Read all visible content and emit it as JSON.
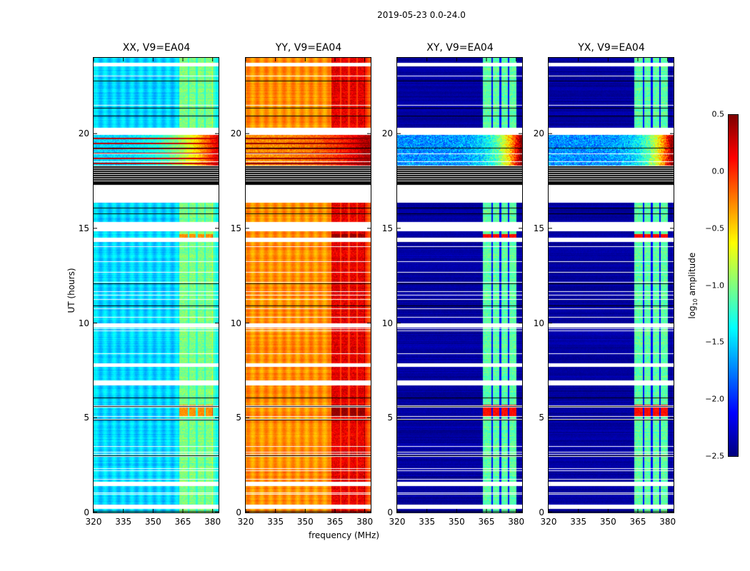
{
  "chart_data": {
    "type": "heatmap",
    "title": "2019-05-23 0.0-24.0",
    "xlabel": "frequency (MHz)",
    "ylabel": "UT (hours)",
    "xlim": [
      320,
      383
    ],
    "ylim": [
      0,
      24
    ],
    "xticks": [
      "320",
      "335",
      "350",
      "365",
      "380"
    ],
    "xtick_values": [
      320,
      335,
      350,
      365,
      380
    ],
    "yticks": [
      "0",
      "5",
      "10",
      "15",
      "20"
    ],
    "ytick_values": [
      0,
      5,
      10,
      15,
      20
    ],
    "colormap": "jet",
    "colorbar": {
      "label_prefix": "log",
      "label_sub": "10",
      "label_suffix": " amplitude",
      "range": [
        -2.5,
        0.5
      ],
      "ticks": [
        "0.5",
        "0.0",
        "−0.5",
        "−1.0",
        "−1.5",
        "−2.0",
        "−2.5"
      ],
      "tick_values": [
        0.5,
        0.0,
        -0.5,
        -1.0,
        -1.5,
        -2.0,
        -2.5
      ]
    },
    "panels": [
      {
        "title": "XX, V9=EA04",
        "pol": "XX",
        "baseline_level": -1.5,
        "band_level": -1.0,
        "storm_level": 0.3,
        "rfi_level": -0.3
      },
      {
        "title": "YY, V9=EA04",
        "pol": "YY",
        "baseline_level": -0.3,
        "band_level": 0.2,
        "storm_level": 0.45,
        "rfi_level": 0.45
      },
      {
        "title": "XY, V9=EA04",
        "pol": "XY",
        "baseline_level": -2.4,
        "band_level": -1.1,
        "storm_level": -0.2,
        "rfi_level": 0.1
      },
      {
        "title": "YX, V9=EA04",
        "pol": "YX",
        "baseline_level": -2.4,
        "band_level": -1.1,
        "storm_level": -0.2,
        "rfi_level": 0.1
      }
    ],
    "band_mhz": [
      363,
      380
    ],
    "storm_hours": [
      18.3,
      20.0
    ],
    "data_gaps_hours": [
      [
        0.25,
        0.4
      ],
      [
        1.45,
        1.6
      ],
      [
        6.75,
        6.95
      ],
      [
        7.75,
        7.85
      ],
      [
        9.8,
        9.95
      ],
      [
        14.35,
        14.5
      ],
      [
        14.9,
        15.3
      ],
      [
        16.4,
        17.3
      ],
      [
        20.0,
        20.3
      ],
      [
        23.6,
        23.7
      ]
    ],
    "strong_rfi_hours": [
      [
        5.1,
        5.7
      ],
      [
        14.5,
        14.7
      ]
    ]
  }
}
